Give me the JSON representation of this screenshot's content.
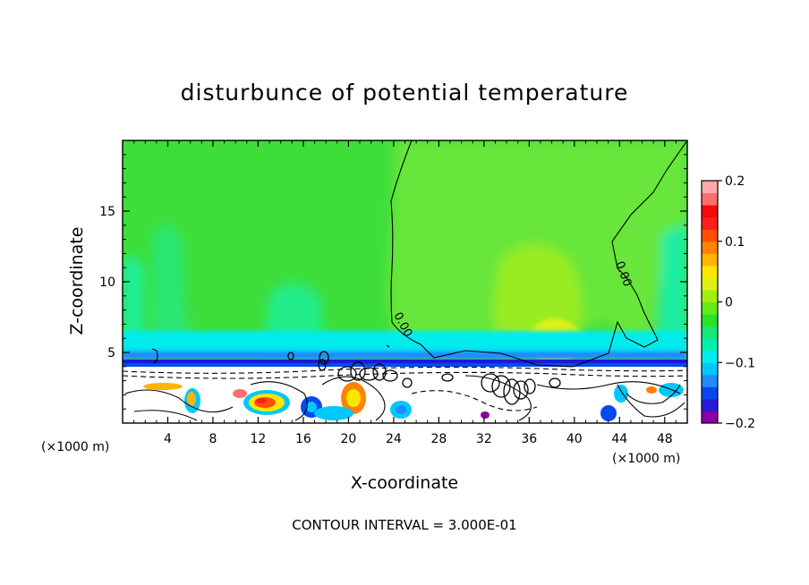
{
  "chart_data": {
    "type": "heatmap",
    "title": "disturbunce of potential temperature",
    "xlabel": "X-coordinate",
    "ylabel": "Z-coordinate",
    "x_unit_left": "(×1000 m)",
    "x_unit_right": "(×1000 m)",
    "xlim": [
      0,
      50
    ],
    "ylim": [
      0,
      20
    ],
    "xticks": [
      4,
      8,
      12,
      16,
      20,
      24,
      28,
      32,
      36,
      40,
      44,
      48
    ],
    "xtick_labels": [
      "4",
      "8",
      "12",
      "16",
      "20",
      "24",
      "28",
      "32",
      "36",
      "40",
      "44",
      "48"
    ],
    "yticks": [
      5,
      10,
      15
    ],
    "ytick_labels": [
      "5",
      "10",
      "15"
    ],
    "colorbar": {
      "range": [
        -0.2,
        0.2
      ],
      "ticks": [
        -0.2,
        -0.1,
        0,
        0.1,
        0.2
      ],
      "tick_labels": [
        "−0.2",
        "−0.1",
        "0",
        "0.1",
        "0.2"
      ],
      "colors": [
        "#8a00a8",
        "#2a1ad8",
        "#0848f0",
        "#1e8cff",
        "#00c8ff",
        "#00ecec",
        "#00f0b0",
        "#14e878",
        "#28e228",
        "#64ea14",
        "#a0ee14",
        "#dcf014",
        "#ffe600",
        "#ffb400",
        "#ff8200",
        "#ff5000",
        "#ff1e1e",
        "#f50a0a",
        "#ff6e6e",
        "#ffa8a8"
      ]
    },
    "contour_labels": [
      "0.00",
      "0.00"
    ],
    "contour_interval_text": "CONTOUR INTERVAL = 3.000E-01"
  }
}
